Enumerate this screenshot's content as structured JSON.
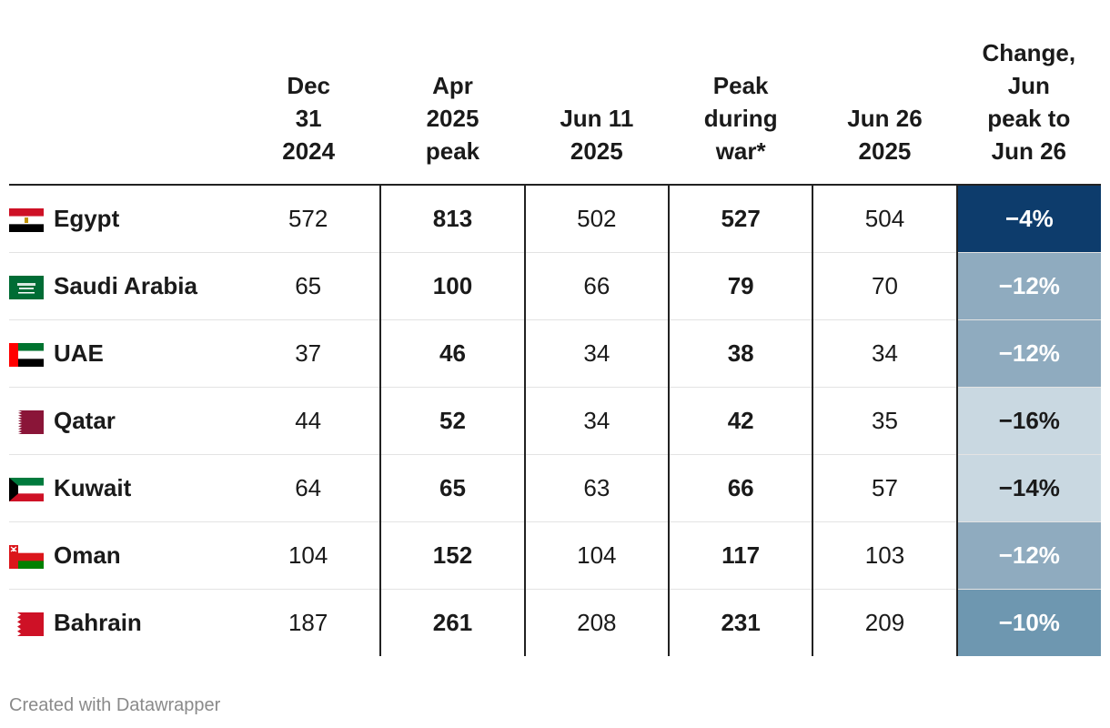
{
  "chart_data": {
    "type": "table",
    "columns": [
      "",
      "Dec 31 2024",
      "Apr 2025 peak",
      "Jun 11 2025",
      "Peak during war*",
      "Jun 26 2025",
      "Change, Jun peak to Jun 26"
    ],
    "column_lines": [
      [
        "Dec",
        "31",
        "2024"
      ],
      [
        "Apr",
        "2025",
        "peak"
      ],
      [
        "Jun 11",
        "2025"
      ],
      [
        "Peak",
        "during",
        "war*"
      ],
      [
        "Jun 26",
        "2025"
      ],
      [
        "Change,",
        "Jun",
        "peak to",
        "Jun 26"
      ]
    ],
    "rows": [
      {
        "country": "Egypt",
        "flag": "egypt-flag",
        "values": [
          "572",
          "813",
          "502",
          "527",
          "504"
        ],
        "change": "−4%",
        "change_value": -4
      },
      {
        "country": "Saudi Arabia",
        "flag": "saudi-arabia-flag",
        "values": [
          "65",
          "100",
          "66",
          "79",
          "70"
        ],
        "change": "−12%",
        "change_value": -12
      },
      {
        "country": "UAE",
        "flag": "uae-flag",
        "values": [
          "37",
          "46",
          "34",
          "38",
          "34"
        ],
        "change": "−12%",
        "change_value": -12
      },
      {
        "country": "Qatar",
        "flag": "qatar-flag",
        "values": [
          "44",
          "52",
          "34",
          "42",
          "35"
        ],
        "change": "−16%",
        "change_value": -16
      },
      {
        "country": "Kuwait",
        "flag": "kuwait-flag",
        "values": [
          "64",
          "65",
          "63",
          "66",
          "57"
        ],
        "change": "−14%",
        "change_value": -14
      },
      {
        "country": "Oman",
        "flag": "oman-flag",
        "values": [
          "104",
          "152",
          "104",
          "117",
          "103"
        ],
        "change": "−12%",
        "change_value": -12
      },
      {
        "country": "Bahrain",
        "flag": "bahrain-flag",
        "values": [
          "187",
          "261",
          "208",
          "231",
          "209"
        ],
        "change": "−10%",
        "change_value": -10
      }
    ],
    "change_colors": [
      {
        "bg": "#0d3c6c",
        "fg": "#ffffff"
      },
      {
        "bg": "#8fabbf",
        "fg": "#ffffff"
      },
      {
        "bg": "#8fabbf",
        "fg": "#ffffff"
      },
      {
        "bg": "#c9d8e1",
        "fg": "#1a1a1a"
      },
      {
        "bg": "#c9d8e1",
        "fg": "#1a1a1a"
      },
      {
        "bg": "#8fabbf",
        "fg": "#ffffff"
      },
      {
        "bg": "#6e97b0",
        "fg": "#ffffff"
      }
    ]
  },
  "footer": "Created with Datawrapper"
}
